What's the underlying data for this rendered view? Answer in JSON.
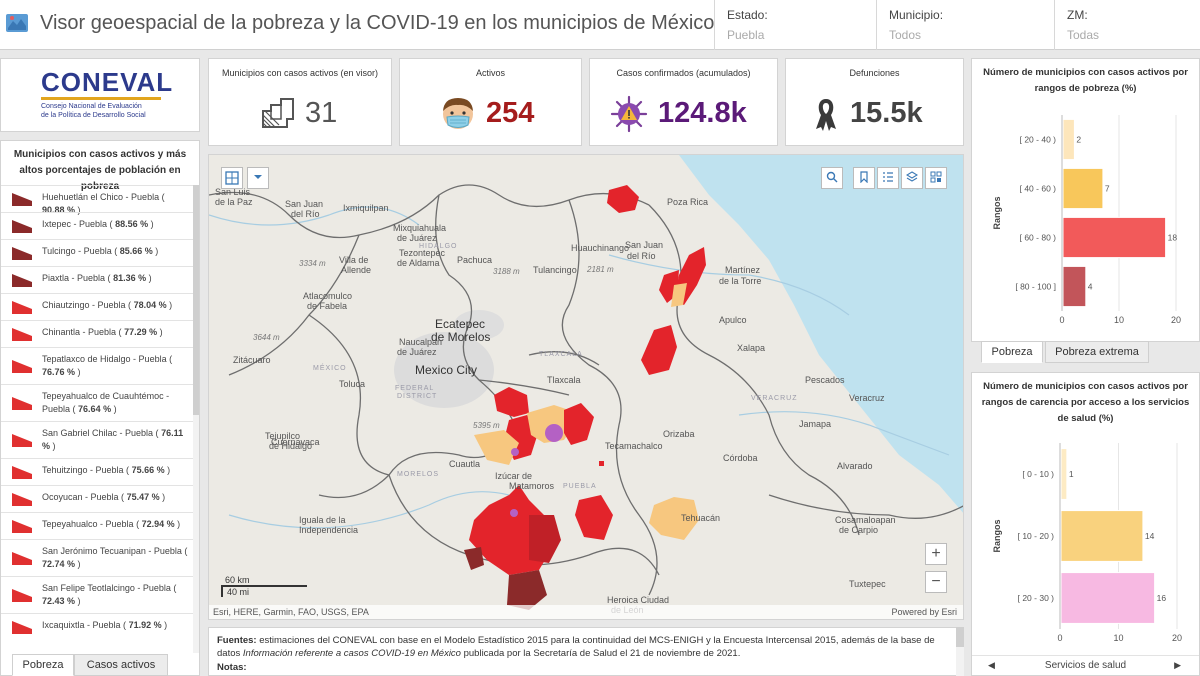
{
  "header": {
    "app_icon": "map-app-icon",
    "title": "Visor geoespacial de la pobreza y la COVID-19 en los municipios de México",
    "filters": [
      {
        "label": "Estado:",
        "value": "Puebla"
      },
      {
        "label": "Municipio:",
        "value": "Todos"
      },
      {
        "label": "ZM:",
        "value": "Todas"
      }
    ]
  },
  "logo": {
    "name": "CONEVAL",
    "subtitle_line1": "Consejo Nacional de Evaluación",
    "subtitle_line2": "de la Política de Desarrollo Social"
  },
  "poverty_list": {
    "title": "Municipios con casos activos y más altos porcentajes de población en pobreza",
    "items": [
      {
        "name": "Huehuetlán el Chico - Puebla (",
        "pct": "90.88 %",
        "tail": ")",
        "color": "#8b2a2a"
      },
      {
        "name": "Ixtepec - Puebla (",
        "pct": "88.56 %",
        "tail": ")",
        "color": "#8b2a2a"
      },
      {
        "name": "Tulcingo - Puebla (",
        "pct": "85.66 %",
        "tail": ")",
        "color": "#8b2a2a"
      },
      {
        "name": "Piaxtla - Puebla (",
        "pct": "81.36 %",
        "tail": ")",
        "color": "#8b2a2a"
      },
      {
        "name": "Chiautzingo - Puebla (",
        "pct": "78.04 %",
        "tail": ")",
        "color": "#e03030"
      },
      {
        "name": "Chinantla - Puebla (",
        "pct": "77.29 %",
        "tail": ")",
        "color": "#e03030"
      },
      {
        "name": "Tepatlaxco de Hidalgo - Puebla (",
        "pct": "76.76 %",
        "tail": ")",
        "color": "#e03030"
      },
      {
        "name": "Tepeyahualco de Cuauhtémoc - Puebla (",
        "pct": "76.64 %",
        "tail": ")",
        "color": "#e03030"
      },
      {
        "name": "San Gabriel Chilac - Puebla (",
        "pct": "76.11 %",
        "tail": ")",
        "color": "#e03030"
      },
      {
        "name": "Tehuitzingo - Puebla (",
        "pct": "75.66 %",
        "tail": ")",
        "color": "#e03030"
      },
      {
        "name": "Ocoyucan - Puebla (",
        "pct": "75.47 %",
        "tail": ")",
        "color": "#e03030"
      },
      {
        "name": "Tepeyahualco - Puebla (",
        "pct": "72.94 %",
        "tail": ")",
        "color": "#e03030"
      },
      {
        "name": "San Jerónimo Tecuanipan - Puebla (",
        "pct": "72.74 %",
        "tail": ")",
        "color": "#e03030"
      },
      {
        "name": "San Felipe Teotlalcingo - Puebla (",
        "pct": "72.43 %",
        "tail": ")",
        "color": "#e03030"
      },
      {
        "name": "Ixcaquixtla - Puebla (",
        "pct": "71.92 %",
        "tail": ")",
        "color": "#e03030"
      }
    ]
  },
  "left_tabs": [
    "Pobreza",
    "Casos activos"
  ],
  "stats": [
    {
      "title": "Municipios con casos activos (en visor)",
      "value": "31",
      "icon": "municipality-map-icon",
      "color": "#555555"
    },
    {
      "title": "Activos",
      "value": "254",
      "icon": "masked-person-icon",
      "color": "#a51c1c"
    },
    {
      "title": "Casos confirmados (acumulados)",
      "value": "124.8k",
      "icon": "virus-warning-icon",
      "color": "#5b1a78"
    },
    {
      "title": "Defunciones",
      "value": "15.5k",
      "icon": "ribbon-icon",
      "color": "#444444"
    }
  ],
  "map": {
    "places": [
      {
        "t": "San Luis",
        "cls": ""
      },
      {
        "t": "de la Paz",
        "cls": ""
      },
      {
        "t": "San Juan",
        "cls": ""
      },
      {
        "t": "del Río",
        "cls": ""
      },
      {
        "t": "Ixmiquilpan",
        "cls": ""
      },
      {
        "t": "HIDALGO",
        "cls": "state"
      },
      {
        "t": "Poza Rica",
        "cls": ""
      },
      {
        "t": "Mixquiahuala",
        "cls": ""
      },
      {
        "t": "de Juárez",
        "cls": ""
      },
      {
        "t": "Tezontepec",
        "cls": ""
      },
      {
        "t": "de Aldama",
        "cls": ""
      },
      {
        "t": "Huauchinango",
        "cls": ""
      },
      {
        "t": "San Juan",
        "cls": ""
      },
      {
        "t": "del Río",
        "cls": ""
      },
      {
        "t": "Villa de",
        "cls": ""
      },
      {
        "t": "Allende",
        "cls": ""
      },
      {
        "t": "3334 m",
        "cls": "elev"
      },
      {
        "t": "Pachuca",
        "cls": ""
      },
      {
        "t": "3188 m",
        "cls": "elev"
      },
      {
        "t": "Tulancingo",
        "cls": ""
      },
      {
        "t": "2181 m",
        "cls": "elev"
      },
      {
        "t": "Martínez",
        "cls": ""
      },
      {
        "t": "de la Torre",
        "cls": ""
      },
      {
        "t": "Atlacomulco",
        "cls": ""
      },
      {
        "t": "de Fabela",
        "cls": ""
      },
      {
        "t": "Ecatepec",
        "cls": "big"
      },
      {
        "t": "de Morelos",
        "cls": "big"
      },
      {
        "t": "Xalapa",
        "cls": ""
      },
      {
        "t": "3644 m",
        "cls": "elev"
      },
      {
        "t": "Naucalpan",
        "cls": ""
      },
      {
        "t": "de Juárez",
        "cls": ""
      },
      {
        "t": "Zitácuaro",
        "cls": ""
      },
      {
        "t": "MÉXICO",
        "cls": "state"
      },
      {
        "t": "Mexico City",
        "cls": "big"
      },
      {
        "t": "TLAXCALA",
        "cls": "state"
      },
      {
        "t": "Tlaxcala",
        "cls": ""
      },
      {
        "t": "Toluca",
        "cls": ""
      },
      {
        "t": "FEDERAL",
        "cls": "state"
      },
      {
        "t": "DISTRICT",
        "cls": "state"
      },
      {
        "t": "Veracruz",
        "cls": ""
      },
      {
        "t": "VERACRUZ",
        "cls": "state"
      },
      {
        "t": "5395 m",
        "cls": "elev"
      },
      {
        "t": "Tecamachalco",
        "cls": ""
      },
      {
        "t": "Cuernavaca",
        "cls": ""
      },
      {
        "t": "Orizaba",
        "cls": ""
      },
      {
        "t": "Córdoba",
        "cls": ""
      },
      {
        "t": "Tejupilco",
        "cls": ""
      },
      {
        "t": "de Hidalgo",
        "cls": ""
      },
      {
        "t": "Cuautla",
        "cls": ""
      },
      {
        "t": "Alvarado",
        "cls": ""
      },
      {
        "t": "MORELOS",
        "cls": "state"
      },
      {
        "t": "Izúcar de",
        "cls": ""
      },
      {
        "t": "Matamoros",
        "cls": ""
      },
      {
        "t": "PUEBLA",
        "cls": "state"
      },
      {
        "t": "Iguala de la",
        "cls": ""
      },
      {
        "t": "Independencia",
        "cls": ""
      },
      {
        "t": "Tehuacán",
        "cls": ""
      },
      {
        "t": "Cosamaloapan",
        "cls": ""
      },
      {
        "t": "de Carpio",
        "cls": ""
      },
      {
        "t": "Tuxtepec",
        "cls": ""
      },
      {
        "t": "Heroica Ciudad",
        "cls": ""
      },
      {
        "t": "de León",
        "cls": ""
      },
      {
        "t": "Jamapa",
        "cls": ""
      },
      {
        "t": "Pescados",
        "cls": ""
      },
      {
        "t": "Apulco",
        "cls": ""
      }
    ],
    "scale_km": "60 km",
    "scale_mi": "40 mi",
    "attribution": "Esri, HERE, Garmin, FAO, USGS, EPA",
    "powered_by": "Powered by Esri",
    "zoom_in": "+",
    "zoom_out": "−"
  },
  "notes": {
    "fuentes_label": "Fuentes:",
    "fuentes_text1": " estimaciones del CONEVAL con base en el Modelo Estadístico 2015 para la continuidad del MCS-ENIGH y la Encuesta Intercensal 2015, además de la base de datos ",
    "fuentes_italic": "Información referente a casos COVID-19 en México",
    "fuentes_text2": " publicada por la Secretaría de Salud el 21 de noviembre de 2021.",
    "notas_label": "Notas:"
  },
  "right_tabs": [
    "Pobreza",
    "Pobreza extrema"
  ],
  "bottom_nav": {
    "label": "Servicios de salud",
    "prev": "◀",
    "next": "▶"
  },
  "chart_data": [
    {
      "type": "bar",
      "orientation": "horizontal",
      "title": "Número de municipios con casos activos por rangos de pobreza (%)",
      "ylabel": "Rangos",
      "categories": [
        "[ 20 - 40 )",
        "[ 40 - 60 )",
        "[ 60 - 80 )",
        "[ 80 - 100 ]"
      ],
      "values": [
        2,
        7,
        18,
        4
      ],
      "colors": [
        "#fde6bb",
        "#f8c75b",
        "#f25a5a",
        "#c2555a"
      ],
      "xlim": [
        0,
        20
      ],
      "xticks": [
        0,
        10,
        20
      ]
    },
    {
      "type": "bar",
      "orientation": "horizontal",
      "title": "Número de municipios con casos activos por rangos de carencia por acceso a los servicios de salud (%)",
      "ylabel": "Rangos",
      "categories": [
        "[ 0 - 10 )",
        "[ 10 - 20 )",
        "[ 20 - 30 )"
      ],
      "values": [
        1,
        14,
        16
      ],
      "colors": [
        "#fdebc4",
        "#f9d27e",
        "#f7b9e2"
      ],
      "xlim": [
        0,
        20
      ],
      "xticks": [
        0,
        10,
        20
      ]
    }
  ]
}
